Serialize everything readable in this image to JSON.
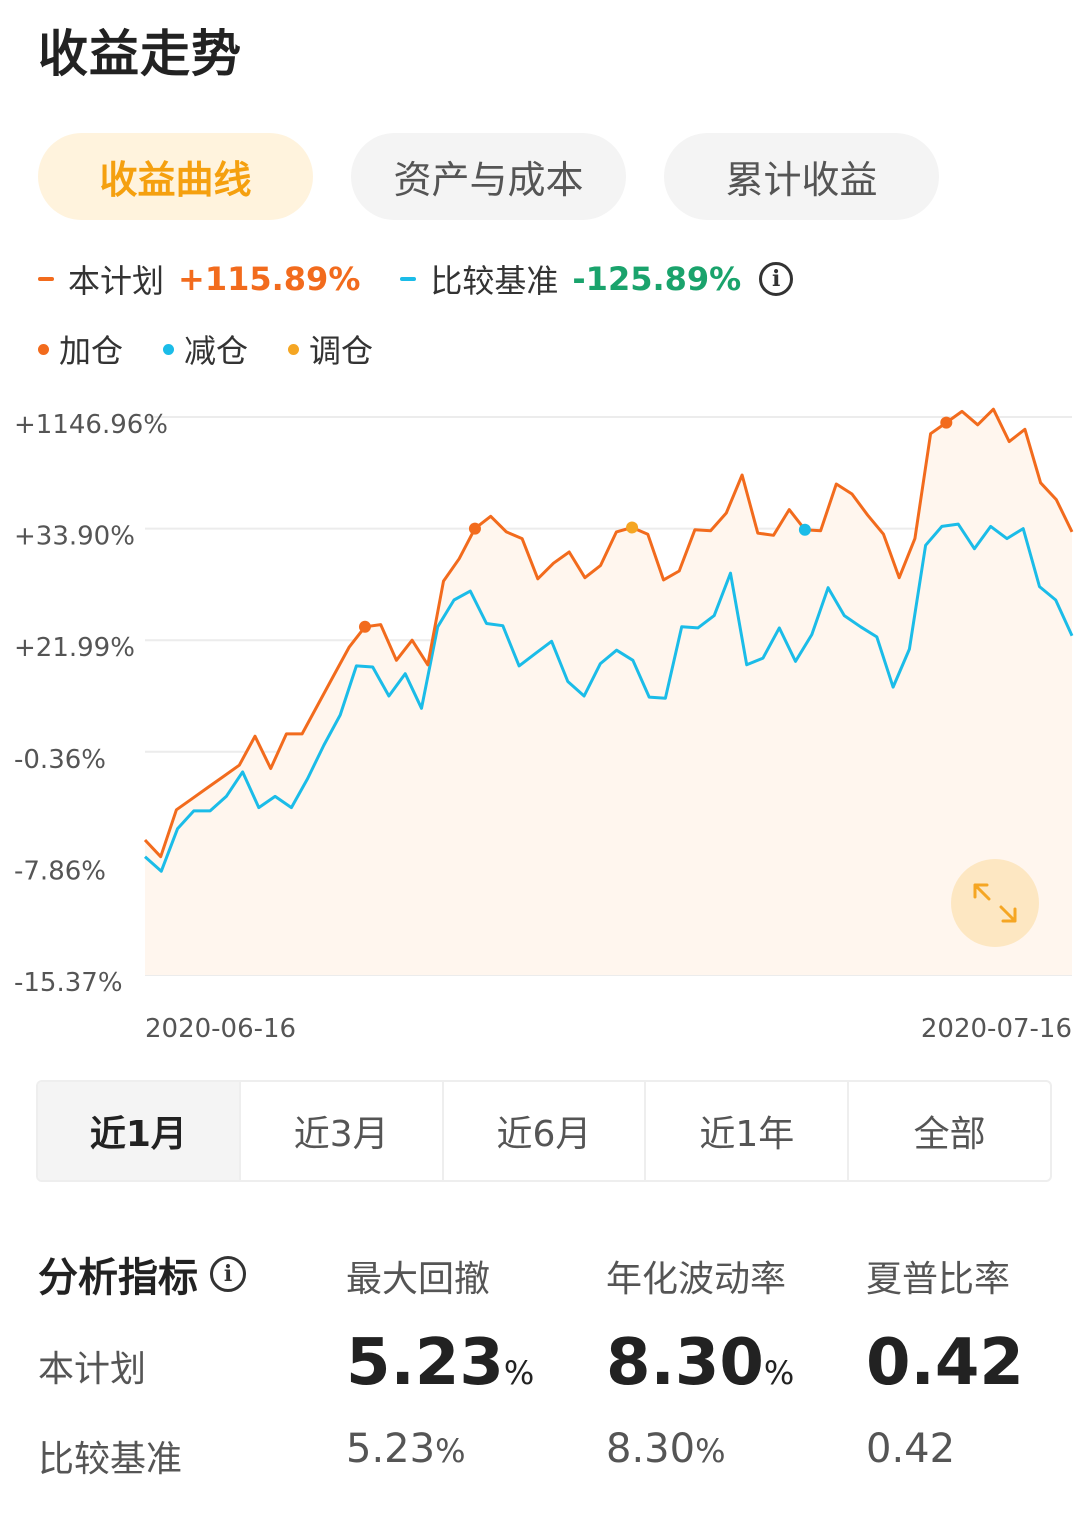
{
  "page_title": "收益走势",
  "tabs": [
    {
      "label": "收益曲线",
      "active": true
    },
    {
      "label": "资产与成本",
      "active": false
    },
    {
      "label": "累计收益",
      "active": false
    }
  ],
  "legend": {
    "plan": {
      "name": "本计划",
      "value": "+115.89%",
      "color": "#f26b1d"
    },
    "benchmark": {
      "name": "比较基准",
      "value": "-125.89%",
      "color": "#1bbce8",
      "value_color": "#1aa36c"
    },
    "info_icon": "i"
  },
  "markers": [
    {
      "label": "加仓",
      "color": "#f26b1d"
    },
    {
      "label": "减仓",
      "color": "#1bbce8"
    },
    {
      "label": "调仓",
      "color": "#f5a623"
    }
  ],
  "chart_data": {
    "type": "line",
    "y_tick_labels": [
      "+1146.96%",
      "+33.90%",
      "+21.99%",
      "-0.36%",
      "-7.86%",
      "-15.37%"
    ],
    "x_tick_labels": [
      "2020-06-16",
      "2020-07-16"
    ],
    "y_scale": "band-position, tick labels are unevenly spaced values; series given as 0-5 band index where 0=-15.37% and 5=+1146.96%",
    "series": [
      {
        "name": "本计划",
        "color": "#f26b1d",
        "values": [
          1.21,
          1.06,
          1.48,
          1.58,
          1.68,
          1.78,
          1.88,
          2.14,
          1.85,
          2.16,
          2.16,
          2.42,
          2.68,
          2.94,
          3.12,
          3.14,
          2.82,
          3.0,
          2.78,
          3.53,
          3.73,
          4.0,
          4.11,
          3.97,
          3.91,
          3.55,
          3.69,
          3.79,
          3.56,
          3.67,
          3.97,
          4.01,
          3.95,
          3.54,
          3.62,
          3.99,
          3.98,
          4.14,
          4.48,
          3.96,
          3.94,
          4.17,
          3.99,
          3.98,
          4.4,
          4.31,
          4.12,
          3.95,
          3.56,
          3.91,
          4.85,
          4.95,
          5.05,
          4.93,
          5.07,
          4.78,
          4.89,
          4.41,
          4.26,
          3.97
        ]
      },
      {
        "name": "比较基准",
        "color": "#1bbce8",
        "values": [
          1.06,
          0.93,
          1.31,
          1.47,
          1.47,
          1.6,
          1.82,
          1.5,
          1.6,
          1.5,
          1.76,
          2.06,
          2.33,
          2.77,
          2.76,
          2.5,
          2.7,
          2.39,
          3.12,
          3.36,
          3.44,
          3.15,
          3.13,
          2.77,
          2.88,
          2.99,
          2.63,
          2.5,
          2.79,
          2.91,
          2.82,
          2.49,
          2.48,
          3.12,
          3.11,
          3.22,
          3.6,
          2.78,
          2.84,
          3.11,
          2.81,
          3.05,
          3.47,
          3.22,
          3.12,
          3.03,
          2.58,
          2.92,
          3.85,
          4.02,
          4.04,
          3.82,
          4.02,
          3.91,
          4.0,
          3.48,
          3.36,
          3.04
        ]
      }
    ],
    "annotations": [
      {
        "type": "加仓",
        "series": "本计划",
        "index": 14
      },
      {
        "type": "加仓",
        "series": "本计划",
        "index": 21
      },
      {
        "type": "调仓",
        "series": "本计划",
        "index": 31
      },
      {
        "type": "减仓",
        "series": "本计划",
        "index": 42
      },
      {
        "type": "加仓",
        "series": "本计划",
        "index": 51
      }
    ],
    "grid": true,
    "area_fill": "#fff6ee"
  },
  "period_buttons": [
    {
      "label": "近1月",
      "active": true
    },
    {
      "label": "近3月",
      "active": false
    },
    {
      "label": "近6月",
      "active": false
    },
    {
      "label": "近1年",
      "active": false
    },
    {
      "label": "全部",
      "active": false
    }
  ],
  "metrics": {
    "title": "分析指标",
    "columns": [
      "最大回撤",
      "年化波动率",
      "夏普比率"
    ],
    "rows": [
      {
        "label": "本计划",
        "values": [
          {
            "num": "5.23",
            "unit": "%"
          },
          {
            "num": "8.30",
            "unit": "%"
          },
          {
            "num": "0.42",
            "unit": ""
          }
        ]
      },
      {
        "label": "比较基准",
        "values": [
          {
            "num": "5.23",
            "unit": "%"
          },
          {
            "num": "8.30",
            "unit": "%"
          },
          {
            "num": "0.42",
            "unit": ""
          }
        ]
      }
    ]
  },
  "expand_icon": "expand-icon"
}
